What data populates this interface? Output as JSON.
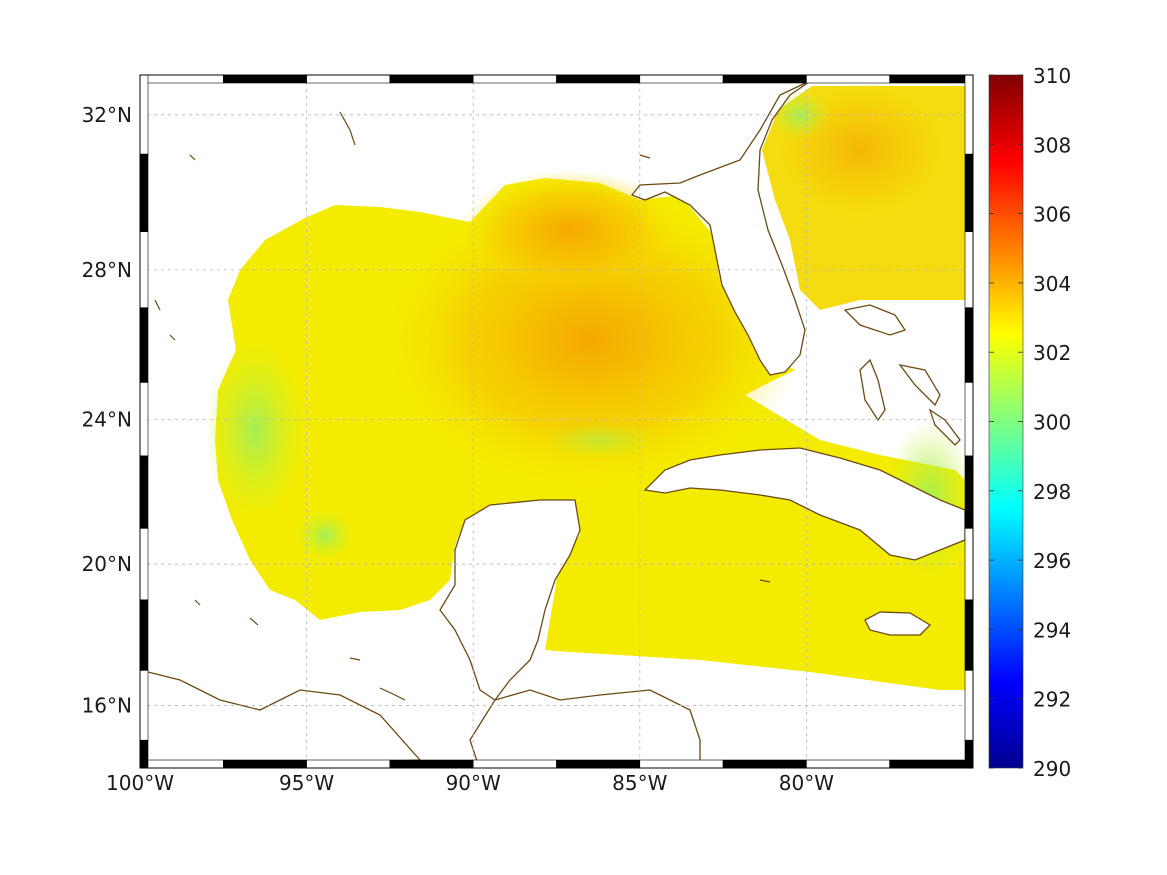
{
  "map": {
    "type": "sea-surface-temperature-map",
    "region": "Gulf of Mexico and northwestern Caribbean",
    "lon_range": [
      -100,
      -75
    ],
    "lat_range": [
      14.2,
      33
    ],
    "projection": "mercator",
    "grid": true,
    "frame": "black-white-checkered",
    "longitude_ticks": [
      {
        "value": -100,
        "label": "100°W"
      },
      {
        "value": -95,
        "label": "95°W"
      },
      {
        "value": -90,
        "label": "90°W"
      },
      {
        "value": -85,
        "label": "85°W"
      },
      {
        "value": -80,
        "label": "80°W"
      }
    ],
    "latitude_ticks": [
      {
        "value": 32,
        "label": "32°N"
      },
      {
        "value": 28,
        "label": "28°N"
      },
      {
        "value": 24,
        "label": "24°N"
      },
      {
        "value": 20,
        "label": "20°N"
      },
      {
        "value": 16,
        "label": "16°N"
      }
    ],
    "field_colors": {
      "land": "#ffffff",
      "coastline": "#6b4a14",
      "warmest_region": "#f6a000",
      "typical_sea": "#f4f000",
      "cooler_patches": "#8ef060"
    },
    "notable_features": [
      {
        "name": "Gulf of Mexico",
        "value_range": [
          301,
          304.5
        ]
      },
      {
        "name": "Florida",
        "type": "land"
      },
      {
        "name": "Yucatan Peninsula",
        "type": "land"
      },
      {
        "name": "Cuba",
        "type": "land"
      },
      {
        "name": "Jamaica",
        "type": "land"
      }
    ]
  },
  "colorbar": {
    "colormap": "jet",
    "min": 290,
    "max": 310,
    "ticks": [
      "310",
      "308",
      "306",
      "304",
      "302",
      "300",
      "298",
      "296",
      "294",
      "292",
      "290"
    ]
  }
}
